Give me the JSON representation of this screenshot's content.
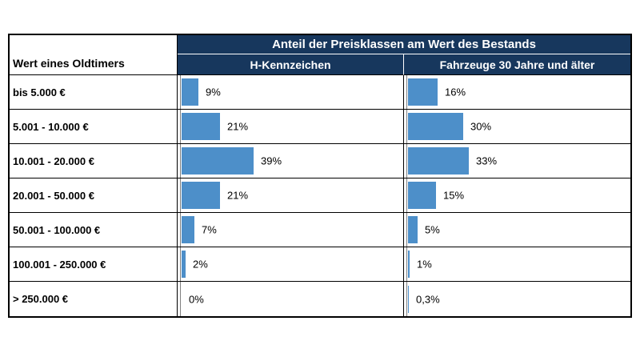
{
  "colors": {
    "header_bg": "#17375d",
    "bar_fill": "#4d8fc9",
    "axis_line": "#808080",
    "grid_border": "#000000"
  },
  "header": {
    "corner_label": "Wert eines Oldtimers",
    "title": "Anteil der Preisklassen am Wert des Bestands",
    "col1": "H-Kennzeichen",
    "col2": "Fahrzeuge 30 Jahre und älter"
  },
  "chart_data": {
    "type": "bar",
    "orientation": "horizontal",
    "title": "Anteil der Preisklassen am Wert des Bestands",
    "category_axis_label": "Wert eines Oldtimers",
    "unit": "%",
    "value_axis_range": [
      0,
      100
    ],
    "grid": false,
    "legend_position": "column-headers",
    "categories": [
      "bis 5.000 €",
      "5.001 - 10.000 €",
      "10.001 - 20.000 €",
      "20.001 - 50.000 €",
      "50.001 - 100.000 €",
      "100.001 - 250.000 €",
      "> 250.000 €"
    ],
    "series": [
      {
        "name": "H-Kennzeichen",
        "values": [
          9,
          21,
          39,
          21,
          7,
          2,
          0
        ],
        "labels": [
          "9%",
          "21%",
          "39%",
          "21%",
          "7%",
          "2%",
          "0%"
        ]
      },
      {
        "name": "Fahrzeuge 30 Jahre und älter",
        "values": [
          16,
          30,
          33,
          15,
          5,
          1,
          0.3
        ],
        "labels": [
          "16%",
          "30%",
          "33%",
          "15%",
          "5%",
          "1%",
          "0,3%"
        ]
      }
    ]
  }
}
